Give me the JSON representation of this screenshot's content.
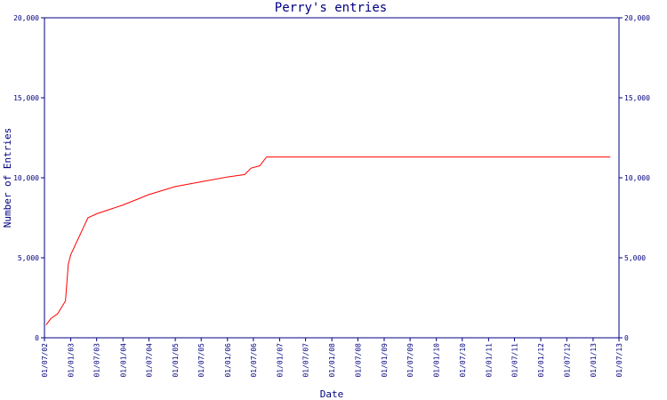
{
  "chart_data": {
    "type": "line",
    "title": "Perry's entries",
    "xlabel": "Date",
    "ylabel": "Number of Entries",
    "ylim": [
      0,
      20000
    ],
    "y_ticks": [
      0,
      5000,
      10000,
      15000,
      20000
    ],
    "y_tick_labels": [
      "0",
      "5,000",
      "10,000",
      "15,000",
      "20,000"
    ],
    "x_ticks": [
      "2002-07-01",
      "2003-01-01",
      "2003-07-01",
      "2004-01-01",
      "2004-07-01",
      "2005-01-01",
      "2005-07-01",
      "2006-01-01",
      "2006-07-01",
      "2007-01-01",
      "2007-07-01",
      "2008-01-01",
      "2008-07-01",
      "2009-01-01",
      "2009-07-01",
      "2010-01-01",
      "2010-07-01",
      "2011-01-01",
      "2011-07-01",
      "2012-01-01",
      "2012-07-01",
      "2013-01-01",
      "2013-07-01"
    ],
    "x_tick_labels": [
      "01/07/02",
      "01/01/03",
      "01/07/03",
      "01/01/04",
      "01/07/04",
      "01/01/05",
      "01/07/05",
      "01/01/06",
      "01/07/06",
      "01/01/07",
      "01/07/07",
      "01/01/08",
      "01/07/08",
      "01/01/09",
      "01/07/09",
      "01/01/10",
      "01/07/10",
      "01/01/11",
      "01/07/11",
      "01/01/12",
      "01/07/12",
      "01/01/13",
      "01/07/13"
    ],
    "xlim": [
      "2002-07-01",
      "2013-07-01"
    ],
    "grid": false,
    "color": "#ff0000",
    "axis_color": "#000080",
    "series": [
      {
        "x": [
          "2002-07-12",
          "2002-08-15",
          "2002-10-01",
          "2002-11-25",
          "2002-12-15",
          "2003-01-01",
          "2003-05-01",
          "2003-07-01",
          "2004-01-01",
          "2004-07-01",
          "2005-01-01",
          "2005-07-01",
          "2006-01-01",
          "2006-05-01",
          "2006-06-15",
          "2006-08-15",
          "2006-10-01",
          "2013-05-01"
        ],
        "y": [
          800,
          1200,
          1500,
          2300,
          4600,
          5200,
          7500,
          7750,
          8300,
          8950,
          9450,
          9750,
          10050,
          10200,
          10600,
          10750,
          11300,
          11300
        ]
      }
    ]
  }
}
